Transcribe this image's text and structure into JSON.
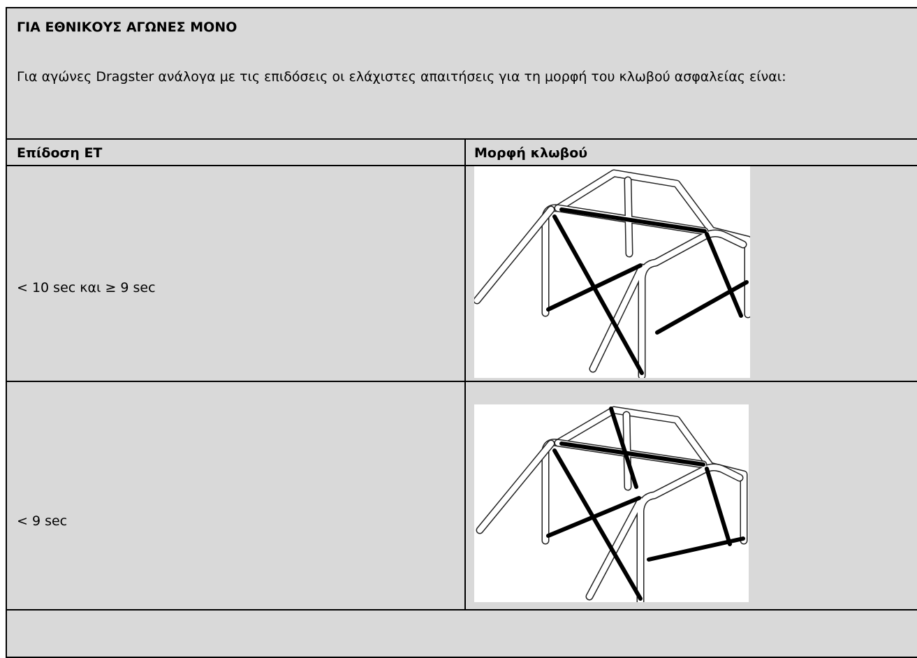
{
  "header": {
    "title": "ΓΙΑ ΕΘΝΙΚΟΥΣ ΑΓΩΝΕΣ ΜΟΝΟ",
    "text": "Για αγώνες Dragster ανάλογα με τις επιδόσεις οι ελάχιστες απαιτήσεις για τη μορφή του κλωβού ασφαλείας είναι:"
  },
  "table": {
    "headers": [
      "Επίδοση ΕΤ",
      "Μορφή κλωβού"
    ],
    "rows": [
      [
        "< 10 sec και ≥ 9 sec"
      ],
      [
        "< 9 sec"
      ]
    ]
  }
}
